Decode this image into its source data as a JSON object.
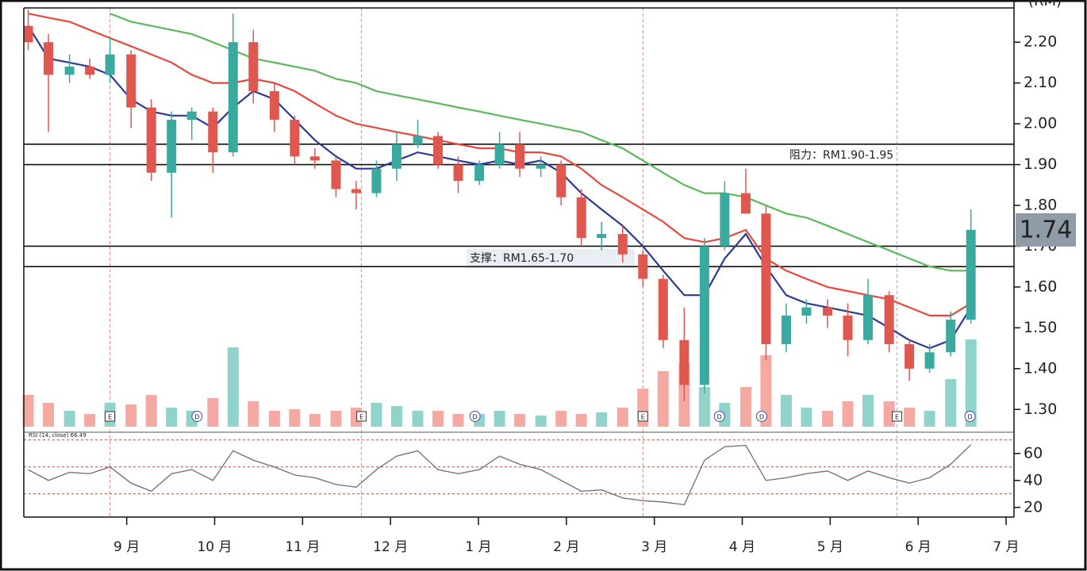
{
  "chart_data": [
    {
      "type": "candlestick",
      "ylabel": "(RM)",
      "xlim": [
        7.83,
        19.09
      ],
      "ylim": [
        1.25,
        2.28
      ],
      "yticks": [
        {
          "value": 2.2,
          "label": "2.20"
        },
        {
          "value": 2.1,
          "label": "2.10"
        },
        {
          "value": 2.0,
          "label": "2.00"
        },
        {
          "value": 1.9,
          "label": "1.90"
        },
        {
          "value": 1.8,
          "label": "1.80"
        },
        {
          "value": 1.7,
          "label": "1.70"
        },
        {
          "value": 1.6,
          "label": "1.60"
        },
        {
          "value": 1.5,
          "label": "1.50"
        },
        {
          "value": 1.4,
          "label": "1.40"
        },
        {
          "value": 1.3,
          "label": "1.30"
        }
      ],
      "x": [
        7.88,
        8.11,
        8.35,
        8.58,
        8.81,
        9.05,
        9.28,
        9.51,
        9.74,
        9.98,
        10.21,
        10.44,
        10.68,
        10.91,
        11.14,
        11.38,
        11.61,
        11.84,
        12.07,
        12.31,
        12.54,
        12.77,
        13.01,
        13.24,
        13.47,
        13.71,
        13.94,
        14.17,
        14.4,
        14.64,
        14.87,
        15.1,
        15.34,
        15.57,
        15.8,
        16.04,
        16.27,
        16.5,
        16.73,
        16.97,
        17.2,
        17.43,
        17.67,
        17.9,
        18.13,
        18.37,
        18.6
      ],
      "open": [
        2.24,
        2.2,
        2.12,
        2.14,
        2.12,
        2.17,
        2.04,
        1.88,
        2.01,
        2.03,
        1.93,
        2.2,
        2.08,
        2.01,
        1.92,
        1.91,
        1.84,
        1.83,
        1.89,
        1.95,
        1.97,
        1.9,
        1.86,
        1.9,
        1.95,
        1.89,
        1.9,
        1.82,
        1.72,
        1.73,
        1.68,
        1.62,
        1.47,
        1.36,
        1.7,
        1.83,
        1.78,
        1.46,
        1.53,
        1.55,
        1.53,
        1.47,
        1.58,
        1.46,
        1.4,
        1.44,
        1.52
      ],
      "high": [
        2.28,
        2.22,
        2.17,
        2.16,
        2.21,
        2.18,
        2.06,
        2.03,
        2.04,
        2.04,
        2.27,
        2.23,
        2.1,
        2.02,
        1.94,
        1.92,
        1.86,
        1.91,
        1.98,
        2.01,
        1.98,
        1.92,
        1.91,
        1.98,
        1.98,
        1.92,
        1.91,
        1.84,
        1.76,
        1.75,
        1.69,
        1.63,
        1.55,
        1.72,
        1.86,
        1.89,
        1.8,
        1.56,
        1.57,
        1.57,
        1.56,
        1.62,
        1.59,
        1.47,
        1.46,
        1.54,
        1.79
      ],
      "low": [
        2.18,
        1.98,
        2.1,
        2.11,
        2.1,
        1.99,
        1.86,
        1.77,
        1.96,
        1.88,
        1.92,
        2.05,
        1.98,
        1.9,
        1.89,
        1.82,
        1.79,
        1.82,
        1.86,
        1.94,
        1.89,
        1.83,
        1.85,
        1.89,
        1.87,
        1.87,
        1.8,
        1.7,
        1.69,
        1.66,
        1.6,
        1.45,
        1.32,
        1.34,
        1.69,
        1.78,
        1.42,
        1.44,
        1.51,
        1.5,
        1.43,
        1.46,
        1.44,
        1.37,
        1.39,
        1.43,
        1.51
      ],
      "close": [
        2.2,
        2.12,
        2.14,
        2.12,
        2.17,
        2.04,
        1.88,
        2.01,
        2.03,
        1.93,
        2.2,
        2.08,
        2.01,
        1.92,
        1.91,
        1.84,
        1.83,
        1.89,
        1.95,
        1.97,
        1.9,
        1.86,
        1.9,
        1.95,
        1.89,
        1.9,
        1.82,
        1.72,
        1.73,
        1.68,
        1.62,
        1.47,
        1.36,
        1.7,
        1.83,
        1.78,
        1.46,
        1.53,
        1.55,
        1.53,
        1.47,
        1.58,
        1.46,
        1.4,
        1.44,
        1.52,
        1.74
      ],
      "up_color": "#3aa99f",
      "down_color": "#e0574f",
      "volume": [
        2.0,
        1.5,
        1.0,
        0.8,
        1.5,
        1.4,
        2.0,
        1.2,
        1.0,
        1.8,
        5.0,
        1.6,
        1.0,
        1.1,
        0.8,
        1.0,
        1.2,
        1.5,
        1.3,
        1.0,
        1.0,
        0.8,
        0.8,
        1.0,
        0.8,
        0.7,
        1.0,
        0.8,
        0.9,
        1.2,
        2.4,
        3.5,
        4.0,
        2.5,
        1.5,
        2.5,
        4.5,
        2.0,
        1.2,
        1.0,
        1.6,
        2.0,
        1.6,
        1.2,
        1.0,
        3.0,
        5.5
      ],
      "vlim": [
        0,
        10
      ],
      "volume_up_color": "#8fd3cb",
      "volume_down_color": "#f4aaa3",
      "ma_lines": [
        {
          "color": "#2b3a93",
          "values": [
            2.24,
            2.16,
            2.15,
            2.14,
            2.12,
            2.06,
            2.03,
            2.02,
            2.02,
            1.99,
            2.04,
            2.08,
            2.06,
            2.01,
            1.96,
            1.92,
            1.89,
            1.89,
            1.91,
            1.93,
            1.92,
            1.91,
            1.9,
            1.91,
            1.9,
            1.91,
            1.88,
            1.83,
            1.79,
            1.75,
            1.7,
            1.64,
            1.58,
            1.58,
            1.67,
            1.73,
            1.65,
            1.58,
            1.56,
            1.55,
            1.54,
            1.53,
            1.5,
            1.47,
            1.45,
            1.47,
            1.55
          ]
        },
        {
          "color": "#e8483b",
          "values": [
            2.27,
            2.26,
            2.25,
            2.23,
            2.21,
            2.19,
            2.17,
            2.15,
            2.12,
            2.1,
            2.1,
            2.11,
            2.1,
            2.08,
            2.05,
            2.02,
            2.0,
            1.99,
            1.98,
            1.97,
            1.96,
            1.95,
            1.94,
            1.94,
            1.93,
            1.93,
            1.92,
            1.89,
            1.85,
            1.82,
            1.79,
            1.76,
            1.72,
            1.71,
            1.72,
            1.74,
            1.67,
            1.64,
            1.62,
            1.6,
            1.59,
            1.58,
            1.57,
            1.55,
            1.53,
            1.53,
            1.56
          ]
        },
        {
          "color": "#5cb85c",
          "values": [
            null,
            null,
            null,
            null,
            2.27,
            2.25,
            2.24,
            2.23,
            2.22,
            2.2,
            2.18,
            2.16,
            2.15,
            2.14,
            2.13,
            2.11,
            2.1,
            2.08,
            2.07,
            2.06,
            2.05,
            2.04,
            2.03,
            2.02,
            2.01,
            2.0,
            1.99,
            1.98,
            1.96,
            1.94,
            1.91,
            1.88,
            1.85,
            1.83,
            1.83,
            1.82,
            1.8,
            1.78,
            1.77,
            1.75,
            1.73,
            1.71,
            1.69,
            1.67,
            1.65,
            1.64,
            1.64
          ]
        }
      ],
      "levels": [
        1.95,
        1.9,
        1.7,
        1.65
      ],
      "annotations": [
        "阻力：RM1.90-1.95",
        "支撑：RM1.65-1.70"
      ],
      "events": [
        {
          "x": 8.81,
          "label": "E"
        },
        {
          "x": 9.8,
          "label": "D"
        },
        {
          "x": 11.67,
          "label": "E"
        },
        {
          "x": 12.96,
          "label": "D"
        },
        {
          "x": 14.87,
          "label": "E"
        },
        {
          "x": 15.74,
          "label": "D"
        },
        {
          "x": 16.22,
          "label": "D"
        },
        {
          "x": 17.76,
          "label": "E"
        },
        {
          "x": 18.59,
          "label": "D"
        }
      ]
    },
    {
      "type": "line",
      "title": "RSI (14, close) 66.49",
      "color": "#777777",
      "xlim": [
        7.83,
        19.09
      ],
      "ylim": [
        14,
        74
      ],
      "yticks": [
        60,
        40,
        20
      ],
      "levels": [
        70,
        50,
        30
      ],
      "values": [
        48,
        40,
        46,
        45,
        50,
        38,
        32,
        45,
        48,
        40,
        62,
        55,
        50,
        44,
        42,
        37,
        35,
        48,
        58,
        62,
        48,
        45,
        48,
        58,
        52,
        48,
        40,
        32,
        33,
        27,
        25,
        24,
        22,
        55,
        65,
        66,
        40,
        42,
        45,
        47,
        40,
        47,
        42,
        38,
        42,
        52,
        66.49
      ],
      "xticks": [
        {
          "value": 9,
          "label": "9 月"
        },
        {
          "value": 10,
          "label": "10 月"
        },
        {
          "value": 11,
          "label": "11 月"
        },
        {
          "value": 12,
          "label": "12 月"
        },
        {
          "value": 13,
          "label": "1 月"
        },
        {
          "value": 14,
          "label": "2 月"
        },
        {
          "value": 15,
          "label": "3 月"
        },
        {
          "value": 16,
          "label": "4 月"
        },
        {
          "value": 17,
          "label": "5 月"
        },
        {
          "value": 18,
          "label": "6 月"
        },
        {
          "value": 19,
          "label": "7 月"
        }
      ]
    }
  ]
}
